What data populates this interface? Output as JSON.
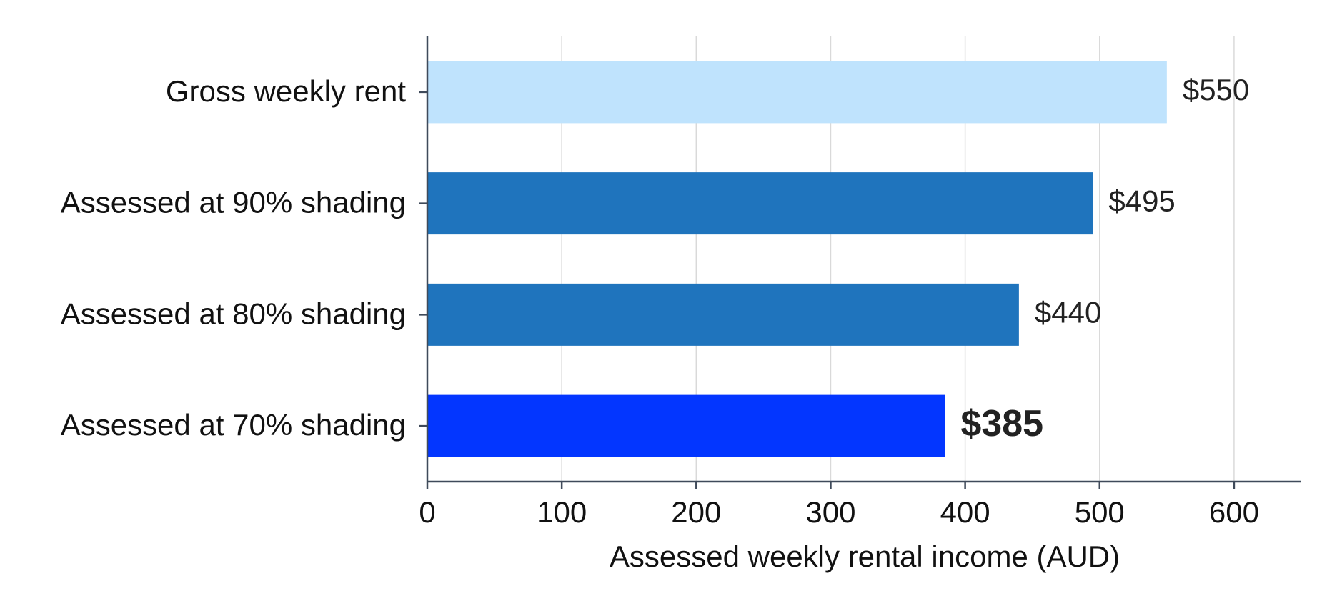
{
  "chart_data": {
    "type": "barh",
    "categories": [
      "Gross weekly rent",
      "Assessed at 90% shading",
      "Assessed at 80% shading",
      "Assessed at 70% shading"
    ],
    "values": [
      550,
      495,
      440,
      385
    ],
    "value_labels": [
      "$550",
      "$495",
      "$440",
      "$385"
    ],
    "colors": [
      "#bfe3fd",
      "#1f74bd",
      "#1f74bd",
      "#0336ff"
    ],
    "bold_labels": [
      false,
      false,
      false,
      true
    ],
    "xlabel": "Assessed weekly rental income (AUD)",
    "xlim": [
      0,
      650
    ],
    "xticks": [
      0,
      100,
      200,
      300,
      400,
      500,
      600
    ],
    "grid": true
  }
}
